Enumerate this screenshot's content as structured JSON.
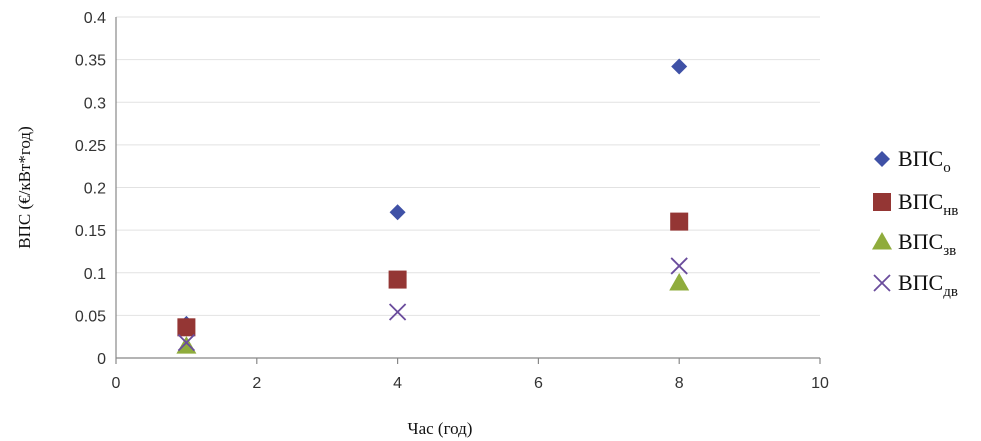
{
  "chart_data": {
    "type": "scatter",
    "title": "",
    "xlabel": "Час (год)",
    "ylabel": "ВПС (€/кВт*год)",
    "xlim": [
      0,
      10
    ],
    "ylim": [
      0,
      0.4
    ],
    "x_ticks": [
      "0",
      "2",
      "4",
      "6",
      "8",
      "10"
    ],
    "y_ticks": [
      "0",
      "0.05",
      "0.1",
      "0.15",
      "0.2",
      "0.25",
      "0.3",
      "0.35",
      "0.4"
    ],
    "grid": "horizontal",
    "legend_position": "right",
    "series": [
      {
        "name": "ВПС",
        "name_sub": "о",
        "marker": "diamond",
        "color": "#3f51a6",
        "points": [
          {
            "x": 1,
            "y": 0.04
          },
          {
            "x": 4,
            "y": 0.171
          },
          {
            "x": 8,
            "y": 0.342
          }
        ]
      },
      {
        "name": "ВПС",
        "name_sub": "нв",
        "marker": "square",
        "color": "#943634",
        "points": [
          {
            "x": 1,
            "y": 0.036
          },
          {
            "x": 4,
            "y": 0.092
          },
          {
            "x": 8,
            "y": 0.16
          }
        ]
      },
      {
        "name": "ВПС",
        "name_sub": "зв",
        "marker": "triangle",
        "color": "#8fac3c",
        "points": [
          {
            "x": 1,
            "y": 0.014
          },
          {
            "x": 4,
            "y": null
          },
          {
            "x": 8,
            "y": 0.088
          }
        ]
      },
      {
        "name": "ВПС",
        "name_sub": "дв",
        "marker": "x",
        "color": "#6a4c9c",
        "points": [
          {
            "x": 1,
            "y": 0.018
          },
          {
            "x": 4,
            "y": 0.054
          },
          {
            "x": 8,
            "y": 0.108
          }
        ]
      }
    ]
  }
}
